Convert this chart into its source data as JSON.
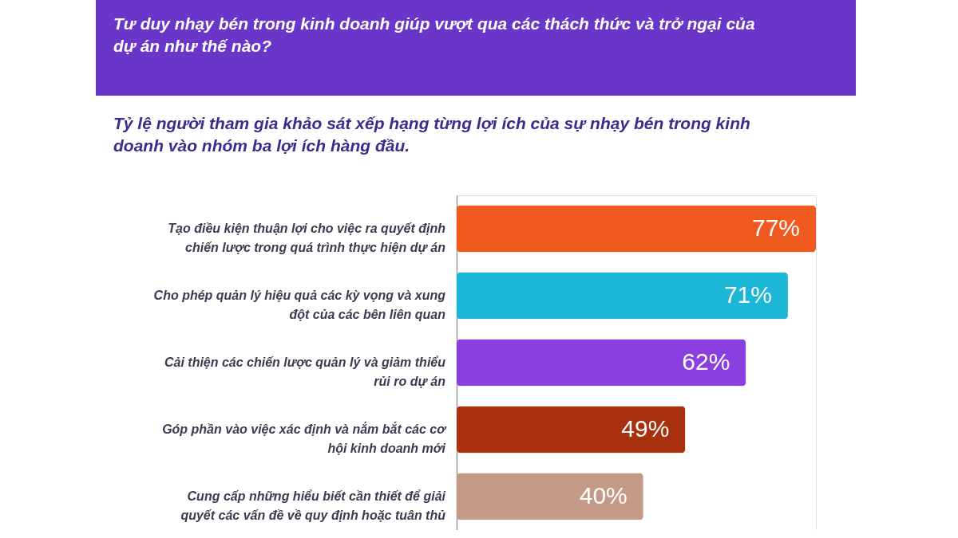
{
  "chart_data": {
    "type": "bar",
    "orientation": "horizontal",
    "title": "Tư duy nhạy bén trong kinh doanh giúp vượt qua các thách thức và trở ngại của dự án như thế nào?",
    "subtitle": "Tỷ lệ người tham gia khảo sát xếp hạng từng lợi ích của sự nhạy bén trong kinh doanh vào nhóm ba lợi ích hàng đầu.",
    "categories": [
      "Tạo điều kiện thuận lợi cho việc ra quyết định chiến lược trong quá trình thực hiện dự án",
      "Cho phép quản lý hiệu quả các kỳ vọng và xung đột của các bên liên quan",
      "Cải thiện các chiến lược quản lý và giảm thiểu rủi ro dự án",
      "Góp phần vào việc xác định và nắm bắt các cơ hội kinh doanh mới",
      "Cung cấp những hiểu biết cần thiết để giải quyết các vấn đề về quy định hoặc tuân thủ"
    ],
    "values": [
      77,
      71,
      62,
      49,
      40
    ],
    "value_labels": [
      "77%",
      "71%",
      "62%",
      "49%",
      "40%"
    ],
    "colors": [
      "#f05a1e",
      "#1cb6d6",
      "#8a40e0",
      "#a8300f",
      "#c49a86"
    ],
    "grid": false
  }
}
